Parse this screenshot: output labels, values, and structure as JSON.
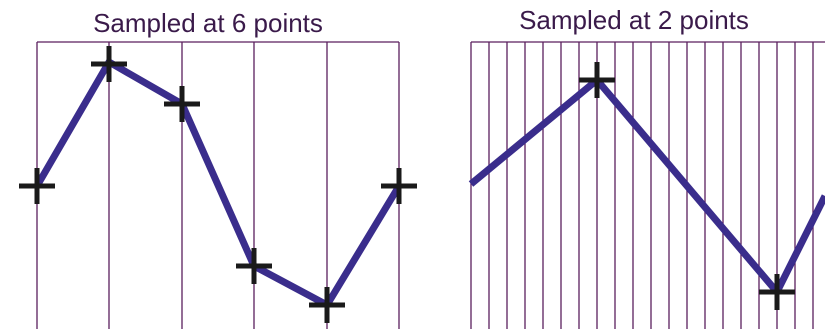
{
  "panels": [
    {
      "title": "Sampled at 6 points",
      "sample_count": 6
    },
    {
      "title": "Sampled at 2 points",
      "sample_count": 2
    }
  ],
  "colors": {
    "waveform": "#3a2d8c",
    "grid": "#5b1f5e",
    "marker": "#1a1a1a",
    "title": "#3a1a4a"
  },
  "icons": {
    "sample_marker": "plus-marker-icon"
  }
}
